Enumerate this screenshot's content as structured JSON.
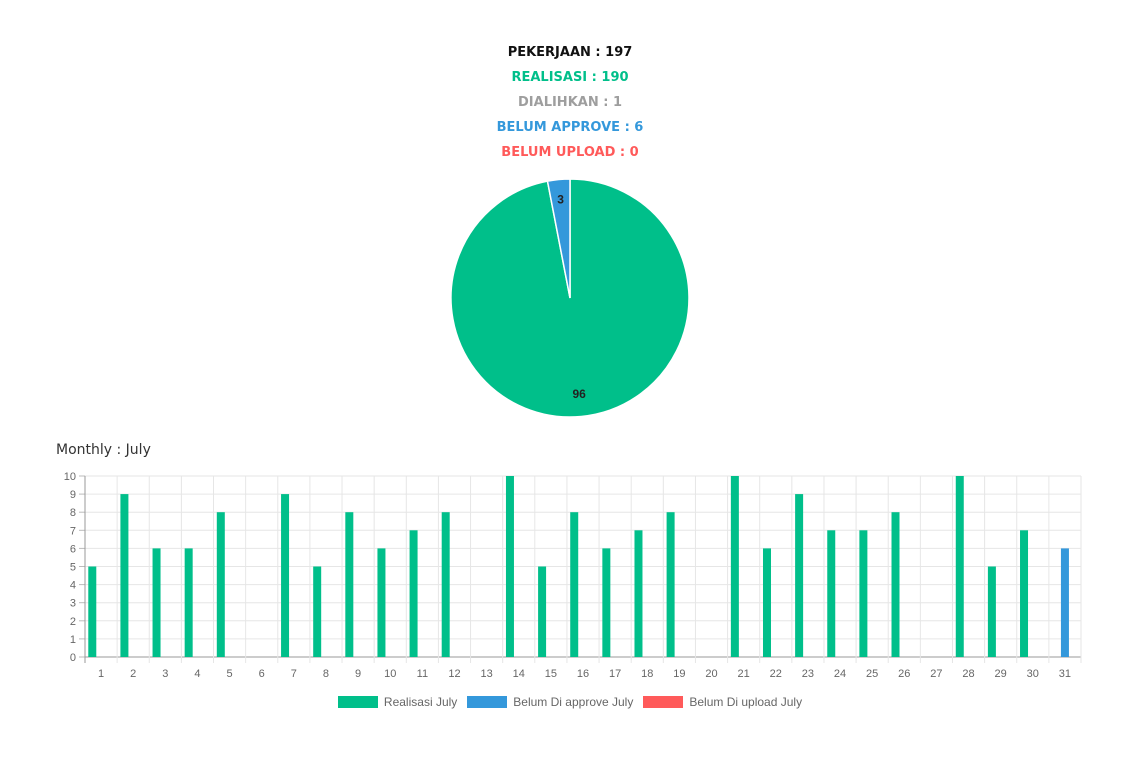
{
  "summary": {
    "pekerjaan": "PEKERJAAN : 197",
    "realisasi": "REALISASI : 190",
    "dialihkan": "DIALIHKAN : 1",
    "belum_approve": "BELUM APPROVE : 6",
    "belum_upload": "BELUM UPLOAD : 0"
  },
  "colors": {
    "pekerjaan": "#111111",
    "realisasi": "#00bf8a",
    "dialihkan": "#9e9e9e",
    "belum_approve": "#3498db",
    "belum_upload": "#ff5a5a"
  },
  "monthly_title": "Monthly : July",
  "chart_data": [
    {
      "type": "pie",
      "slices": [
        {
          "label": "96",
          "value": 96,
          "color": "#00bf8a"
        },
        {
          "label": "3",
          "value": 3,
          "color": "#3498db"
        }
      ]
    },
    {
      "type": "bar",
      "categories": [
        "1",
        "2",
        "3",
        "4",
        "5",
        "6",
        "7",
        "8",
        "9",
        "10",
        "11",
        "12",
        "13",
        "14",
        "15",
        "16",
        "17",
        "18",
        "19",
        "20",
        "21",
        "22",
        "23",
        "24",
        "25",
        "26",
        "27",
        "28",
        "29",
        "30",
        "31"
      ],
      "series": [
        {
          "name": "Realisasi July",
          "color": "#00bf8a",
          "values": [
            5,
            9,
            6,
            6,
            8,
            0,
            9,
            5,
            8,
            6,
            7,
            8,
            0,
            10,
            5,
            8,
            6,
            7,
            8,
            0,
            10,
            6,
            9,
            7,
            7,
            8,
            0,
            10,
            5,
            7,
            0
          ]
        },
        {
          "name": "Belum Di approve July",
          "color": "#3498db",
          "values": [
            0,
            0,
            0,
            0,
            0,
            0,
            0,
            0,
            0,
            0,
            0,
            0,
            0,
            0,
            0,
            0,
            0,
            0,
            0,
            0,
            0,
            0,
            0,
            0,
            0,
            0,
            0,
            0,
            0,
            0,
            6
          ]
        },
        {
          "name": "Belum Di upload July",
          "color": "#ff5a5a",
          "values": [
            0,
            0,
            0,
            0,
            0,
            0,
            0,
            0,
            0,
            0,
            0,
            0,
            0,
            0,
            0,
            0,
            0,
            0,
            0,
            0,
            0,
            0,
            0,
            0,
            0,
            0,
            0,
            0,
            0,
            0,
            0
          ]
        }
      ],
      "yticks": [
        "0",
        "1",
        "2",
        "3",
        "4",
        "5",
        "6",
        "7",
        "8",
        "9",
        "10"
      ],
      "ylim": [
        0,
        10
      ],
      "grid": true,
      "legend": "bottom"
    }
  ]
}
